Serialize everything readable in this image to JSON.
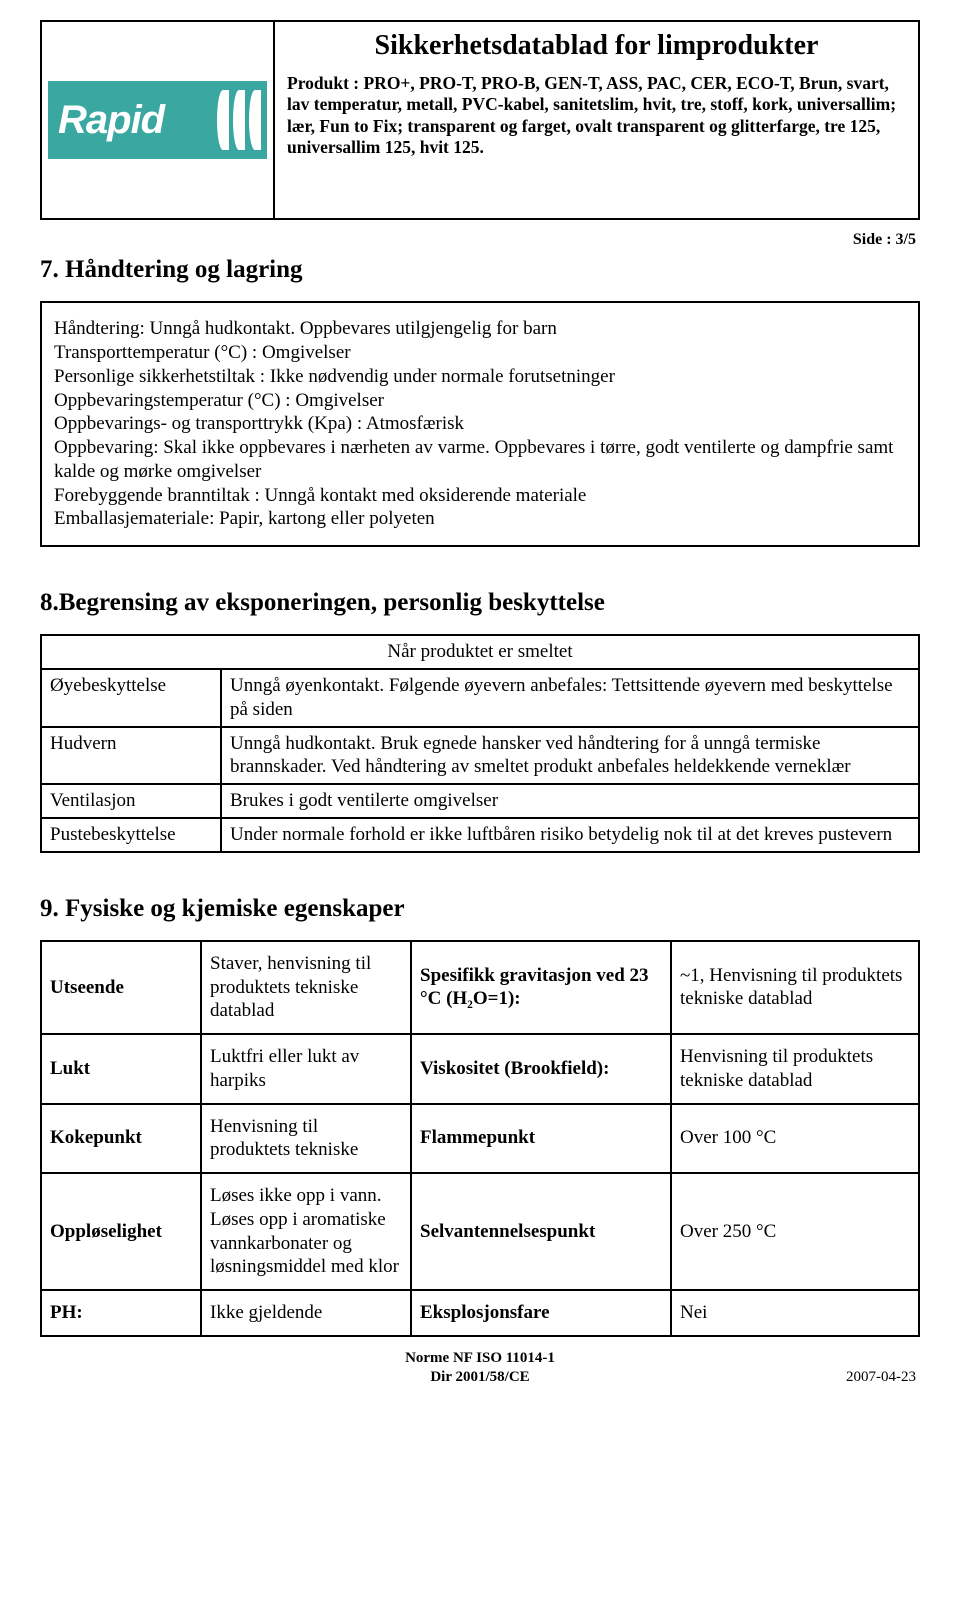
{
  "logo_text": "Rapid",
  "doc_title": "Sikkerhetsdatablad for limprodukter",
  "product_desc": "Produkt : PRO+, PRO-T, PRO-B, GEN-T, ASS, PAC, CER, ECO-T, Brun, svart, lav temperatur, metall, PVC-kabel, sanitetslim, hvit, tre, stoff, kork, universallim; lær, Fun to Fix; transparent og farget, ovalt transparent og glitterfarge, tre 125, universallim 125, hvit 125.",
  "page_indicator": "Side : 3/5",
  "section7": {
    "title": "7. Håndtering og lagring",
    "body": "Håndtering: Unngå hudkontakt. Oppbevares utilgjengelig for barn\nTransporttemperatur (°C) :  Omgivelser\nPersonlige sikkerhetstiltak : Ikke nødvendig under normale forutsetninger\nOppbevaringstemperatur (°C) :  Omgivelser\nOppbevarings- og transporttrykk (Kpa) : Atmosfærisk\nOppbevaring: Skal ikke oppbevares i nærheten av varme. Oppbevares i tørre, godt ventilerte og dampfrie samt kalde og mørke omgivelser\nForebyggende branntiltak : Unngå kontakt med oksiderende materiale\nEmballasjemateriale: Papir, kartong eller polyeten"
  },
  "section8": {
    "title": "8.Begrensing av eksponeringen, personlig beskyttelse",
    "subtitle": "Når produktet er smeltet",
    "rows": [
      {
        "label": "Øyebeskyttelse",
        "value": "Unngå øyenkontakt. Følgende øyevern anbefales: Tettsittende øyevern med beskyttelse på siden"
      },
      {
        "label": "Hudvern",
        "value": "Unngå hudkontakt. Bruk egnede hansker ved håndtering for å unngå termiske brannskader. Ved håndtering av smeltet produkt anbefales heldekkende verneklær"
      },
      {
        "label": "Ventilasjon",
        "value": "Brukes i godt ventilerte omgivelser"
      },
      {
        "label": "Pustebeskyttelse",
        "value": "Under normale forhold er ikke luftbåren risiko betydelig nok til at det kreves pustevern"
      }
    ]
  },
  "section9": {
    "title": "9. Fysiske og kjemiske egenskaper",
    "rows": [
      {
        "c1": "Utseende",
        "c2": "Staver, henvisning til produktets tekniske datablad",
        "c3": "Spesifikk gravitasjon ved 23 °C (H₂O=1):",
        "c4": "~1, Henvisning til produktets tekniske datablad"
      },
      {
        "c1": "Lukt",
        "c2": "Luktfri eller lukt av harpiks",
        "c3": "Viskositet (Brookfield):",
        "c4": "Henvisning til produktets tekniske datablad"
      },
      {
        "c1": "Kokepunkt",
        "c2": "Henvisning til produktets tekniske",
        "c3": "Flammepunkt",
        "c4": "Over 100 °C"
      },
      {
        "c1": "Oppløselighet",
        "c2": "Løses ikke opp i vann. Løses opp i aromatiske vannkarbonater og løsningsmiddel med klor",
        "c3": "Selvantennelsespunkt",
        "c4": "Over 250 °C"
      },
      {
        "c1": "PH:",
        "c2": "Ikke gjeldende",
        "c3": "Eksplosjonsfare",
        "c4": "Nei"
      }
    ]
  },
  "footer": {
    "line1": "Norme NF ISO 11014-1",
    "line2": "Dir 2001/58/CE",
    "date": "2007-04-23"
  },
  "colors": {
    "logo_bg": "#3aa8a0",
    "border": "#000000",
    "text": "#000000"
  }
}
